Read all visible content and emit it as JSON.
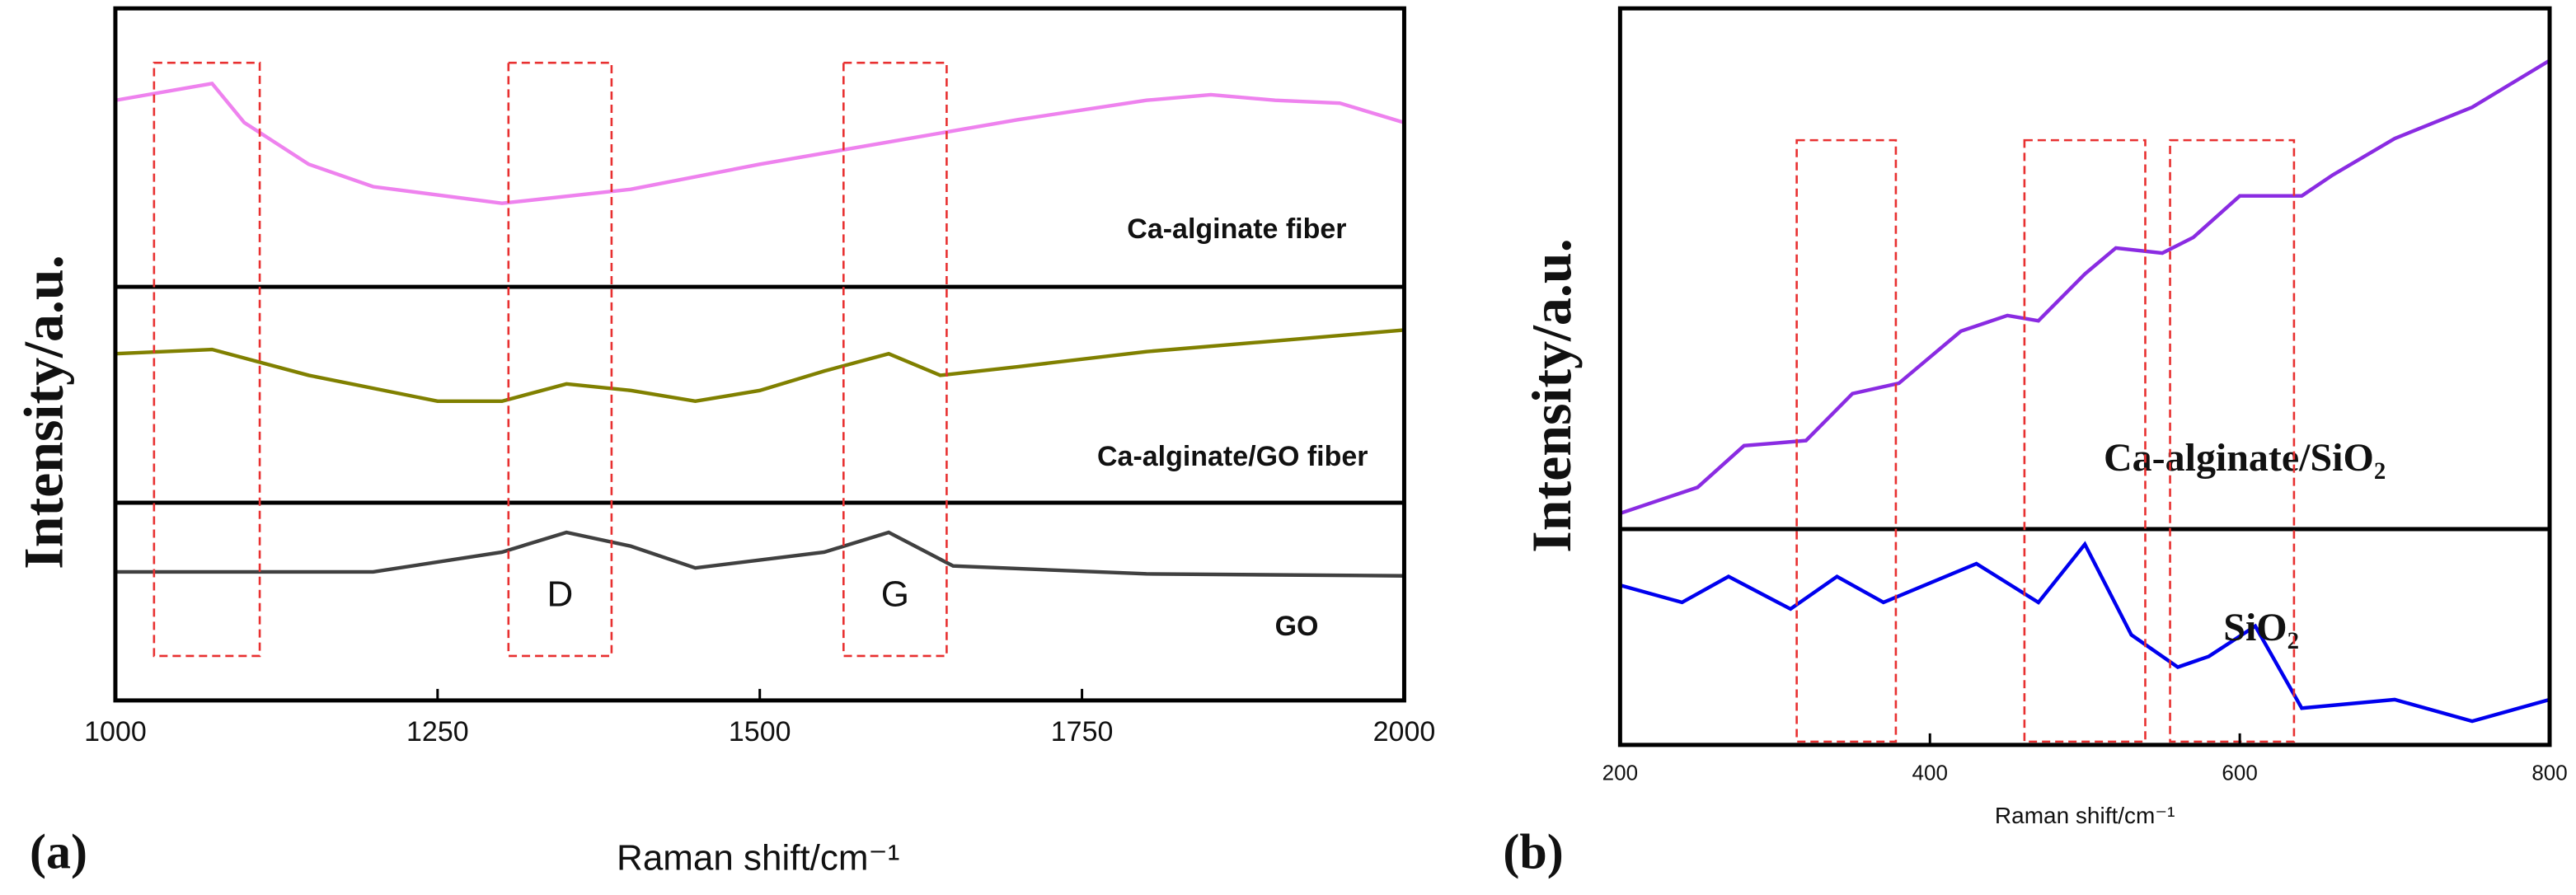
{
  "chart_data": [
    {
      "type": "line",
      "panel_label": "(a)",
      "ylabel": "Intensity/a.u.",
      "xlabel": "Raman shift/cm⁻¹",
      "xlim": [
        1000,
        2000
      ],
      "xticks": [
        1000,
        1250,
        1500,
        1750,
        2000
      ],
      "regions": [
        [
          1030,
          1112
        ],
        [
          1305,
          1385
        ],
        [
          1565,
          1645
        ]
      ],
      "annotations": [
        {
          "text": "D",
          "x": 1345
        },
        {
          "text": "G",
          "x": 1605
        }
      ],
      "series": [
        {
          "name": "Ca-alginate fiber",
          "color": "#ee82ee",
          "ylim": [
            0,
            100
          ],
          "x": [
            1000,
            1075,
            1100,
            1150,
            1200,
            1300,
            1400,
            1500,
            1600,
            1700,
            1800,
            1850,
            1900,
            1950,
            2000
          ],
          "values": [
            67,
            73,
            59,
            44,
            36,
            30,
            35,
            44,
            52,
            60,
            67,
            69,
            67,
            66,
            59
          ]
        },
        {
          "name": "Ca-alginate/GO fiber",
          "color": "#808000",
          "ylim": [
            0,
            100
          ],
          "x": [
            1000,
            1075,
            1150,
            1250,
            1300,
            1350,
            1400,
            1450,
            1500,
            1550,
            1600,
            1640,
            1700,
            1800,
            1900,
            2000
          ],
          "values": [
            69,
            71,
            59,
            47,
            47,
            55,
            52,
            47,
            52,
            61,
            69,
            59,
            63,
            70,
            75,
            80
          ]
        },
        {
          "name": "GO",
          "color": "#404040",
          "ylim": [
            0,
            100
          ],
          "x": [
            1000,
            1200,
            1300,
            1350,
            1400,
            1450,
            1550,
            1600,
            1650,
            1800,
            2000
          ],
          "values": [
            65,
            65,
            75,
            85,
            78,
            67,
            75,
            85,
            68,
            64,
            63
          ]
        }
      ]
    },
    {
      "type": "line",
      "panel_label": "(b)",
      "ylabel": "Intensity/a.u.",
      "xlabel": "Raman shift/cm⁻¹",
      "xlim": [
        200,
        800
      ],
      "xticks": [
        200,
        400,
        600,
        800
      ],
      "regions": [
        [
          314,
          378
        ],
        [
          461,
          539
        ],
        [
          555,
          635
        ]
      ],
      "annotations": [],
      "series": [
        {
          "name": "Ca-alginate/SiO₂",
          "color": "#8a2be2",
          "ylim": [
            0,
            100
          ],
          "x": [
            200,
            250,
            280,
            320,
            350,
            380,
            420,
            450,
            470,
            500,
            520,
            550,
            570,
            600,
            640,
            660,
            700,
            750,
            800
          ],
          "values": [
            3,
            8,
            16,
            17,
            26,
            28,
            38,
            41,
            40,
            49,
            54,
            53,
            56,
            64,
            64,
            68,
            75,
            81,
            90
          ]
        },
        {
          "name": "SiO₂",
          "color": "#0000ee",
          "ylim": [
            0,
            100
          ],
          "x": [
            200,
            240,
            270,
            310,
            340,
            370,
            430,
            470,
            500,
            530,
            560,
            580,
            610,
            640,
            700,
            750,
            800
          ],
          "values": [
            74,
            66,
            78,
            63,
            78,
            66,
            84,
            66,
            93,
            51,
            36,
            41,
            55,
            17,
            21,
            11,
            21
          ]
        }
      ]
    }
  ]
}
